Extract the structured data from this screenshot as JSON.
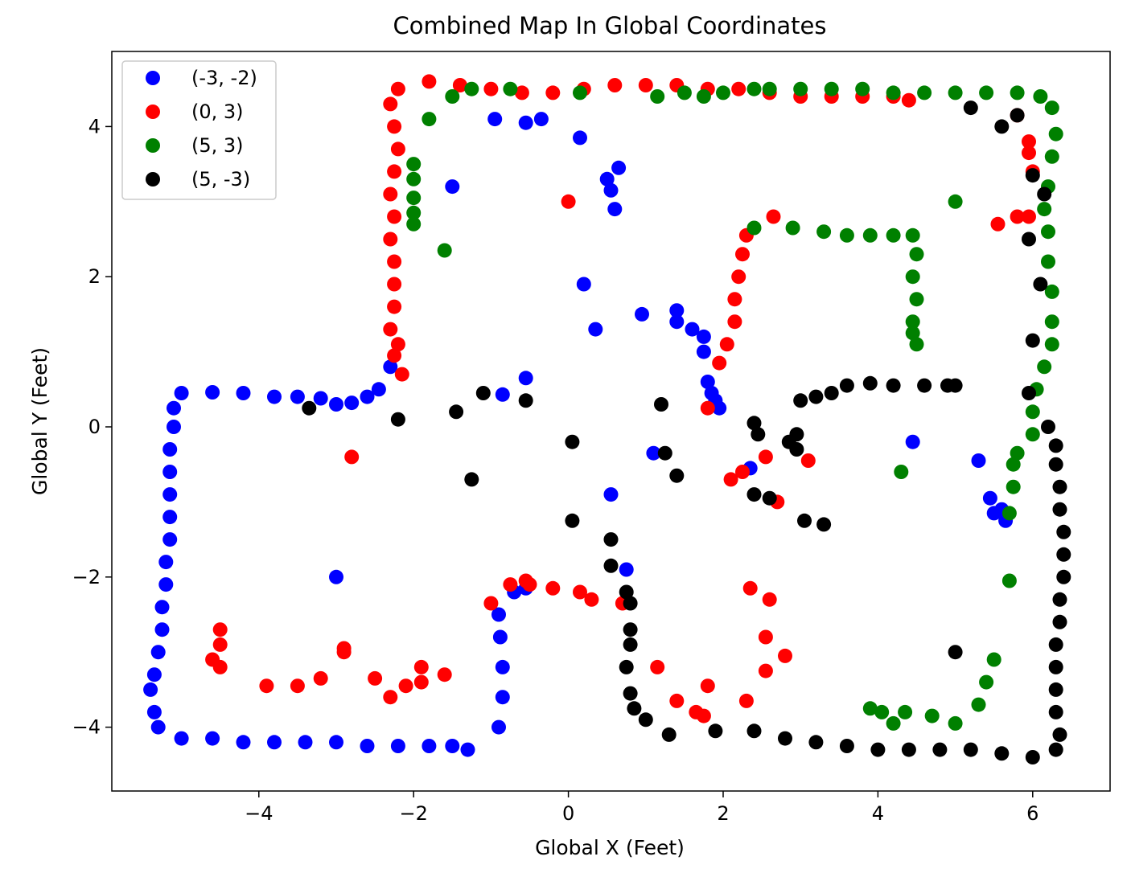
{
  "chart_data": {
    "type": "scatter",
    "title": "Combined Map In Global Coordinates",
    "xlabel": "Global X (Feet)",
    "ylabel": "Global Y (Feet)",
    "xlim": [
      -5.9,
      7.0
    ],
    "ylim": [
      -4.85,
      5.0
    ],
    "xticks": [
      -4,
      -2,
      0,
      2,
      4,
      6
    ],
    "yticks": [
      -4,
      -2,
      0,
      2,
      4
    ],
    "xtick_labels": [
      "−4",
      "−2",
      "0",
      "2",
      "4",
      "6"
    ],
    "ytick_labels": [
      "−4",
      "−2",
      "0",
      "2",
      "4"
    ],
    "grid": false,
    "legend_position": "top-left",
    "series": [
      {
        "name": "(-3, -2)",
        "color": "#0000ff",
        "points": [
          [
            -5.0,
            0.45
          ],
          [
            -4.6,
            0.46
          ],
          [
            -4.2,
            0.45
          ],
          [
            -3.8,
            0.4
          ],
          [
            -3.5,
            0.4
          ],
          [
            -3.2,
            0.38
          ],
          [
            -3.0,
            0.3
          ],
          [
            -2.8,
            0.32
          ],
          [
            -2.6,
            0.4
          ],
          [
            -2.45,
            0.5
          ],
          [
            -2.3,
            0.8
          ],
          [
            -5.1,
            0.25
          ],
          [
            -5.1,
            0.0
          ],
          [
            -5.15,
            -0.3
          ],
          [
            -5.15,
            -0.6
          ],
          [
            -5.15,
            -0.9
          ],
          [
            -5.15,
            -1.2
          ],
          [
            -5.15,
            -1.5
          ],
          [
            -5.2,
            -1.8
          ],
          [
            -5.2,
            -2.1
          ],
          [
            -5.25,
            -2.4
          ],
          [
            -5.25,
            -2.7
          ],
          [
            -5.3,
            -3.0
          ],
          [
            -5.35,
            -3.3
          ],
          [
            -5.4,
            -3.5
          ],
          [
            -5.35,
            -3.8
          ],
          [
            -5.3,
            -4.0
          ],
          [
            -5.0,
            -4.15
          ],
          [
            -4.6,
            -4.15
          ],
          [
            -4.2,
            -4.2
          ],
          [
            -3.8,
            -4.2
          ],
          [
            -3.4,
            -4.2
          ],
          [
            -3.0,
            -4.2
          ],
          [
            -2.6,
            -4.25
          ],
          [
            -2.2,
            -4.25
          ],
          [
            -1.8,
            -4.25
          ],
          [
            -1.5,
            -4.25
          ],
          [
            -1.3,
            -4.3
          ],
          [
            -0.9,
            -4.0
          ],
          [
            -0.85,
            -3.6
          ],
          [
            -0.85,
            -3.2
          ],
          [
            -0.88,
            -2.8
          ],
          [
            -0.9,
            -2.5
          ],
          [
            -0.7,
            -2.2
          ],
          [
            -0.55,
            -2.15
          ],
          [
            -3.0,
            -2.0
          ],
          [
            -0.95,
            4.1
          ],
          [
            -0.55,
            4.05
          ],
          [
            -0.35,
            4.1
          ],
          [
            0.15,
            3.85
          ],
          [
            -1.5,
            3.2
          ],
          [
            0.5,
            3.3
          ],
          [
            0.55,
            3.15
          ],
          [
            0.65,
            3.45
          ],
          [
            0.6,
            2.9
          ],
          [
            0.2,
            1.9
          ],
          [
            0.35,
            1.3
          ],
          [
            0.95,
            1.5
          ],
          [
            1.4,
            1.55
          ],
          [
            1.4,
            1.4
          ],
          [
            1.6,
            1.3
          ],
          [
            1.75,
            1.2
          ],
          [
            1.75,
            1.0
          ],
          [
            1.8,
            0.6
          ],
          [
            1.85,
            0.45
          ],
          [
            1.9,
            0.35
          ],
          [
            1.95,
            0.25
          ],
          [
            -0.85,
            0.43
          ],
          [
            -0.55,
            0.65
          ],
          [
            1.1,
            -0.35
          ],
          [
            0.55,
            -0.9
          ],
          [
            0.75,
            -1.9
          ],
          [
            2.35,
            -0.55
          ],
          [
            4.45,
            -0.2
          ],
          [
            5.3,
            -0.45
          ],
          [
            5.45,
            -0.95
          ],
          [
            5.5,
            -1.15
          ],
          [
            5.6,
            -1.1
          ],
          [
            5.65,
            -1.25
          ]
        ]
      },
      {
        "name": "(0, 3)",
        "color": "#ff0000",
        "points": [
          [
            -2.2,
            4.5
          ],
          [
            -1.8,
            4.6
          ],
          [
            -1.4,
            4.55
          ],
          [
            -1.0,
            4.5
          ],
          [
            -0.6,
            4.45
          ],
          [
            -0.2,
            4.45
          ],
          [
            0.2,
            4.5
          ],
          [
            0.6,
            4.55
          ],
          [
            1.0,
            4.55
          ],
          [
            1.4,
            4.55
          ],
          [
            1.8,
            4.5
          ],
          [
            2.2,
            4.5
          ],
          [
            2.6,
            4.45
          ],
          [
            3.0,
            4.4
          ],
          [
            3.4,
            4.4
          ],
          [
            3.8,
            4.4
          ],
          [
            4.2,
            4.4
          ],
          [
            4.4,
            4.35
          ],
          [
            -2.3,
            4.3
          ],
          [
            -2.25,
            4.0
          ],
          [
            -2.2,
            3.7
          ],
          [
            -2.25,
            3.4
          ],
          [
            -2.3,
            3.1
          ],
          [
            -2.25,
            2.8
          ],
          [
            -2.3,
            2.5
          ],
          [
            -2.25,
            2.2
          ],
          [
            -2.25,
            1.9
          ],
          [
            -2.25,
            1.6
          ],
          [
            -2.3,
            1.3
          ],
          [
            -2.2,
            1.1
          ],
          [
            -2.25,
            0.95
          ],
          [
            -2.15,
            0.7
          ],
          [
            1.95,
            0.85
          ],
          [
            2.05,
            1.1
          ],
          [
            2.15,
            1.4
          ],
          [
            2.15,
            1.7
          ],
          [
            2.2,
            2.0
          ],
          [
            2.25,
            2.3
          ],
          [
            2.3,
            2.55
          ],
          [
            2.65,
            2.8
          ],
          [
            1.8,
            0.25
          ],
          [
            0.0,
            3.0
          ],
          [
            -2.8,
            -0.4
          ],
          [
            2.1,
            -0.7
          ],
          [
            2.25,
            -0.6
          ],
          [
            2.55,
            -0.4
          ],
          [
            2.7,
            -1.0
          ],
          [
            3.1,
            -0.45
          ],
          [
            -4.5,
            -2.7
          ],
          [
            -4.5,
            -2.9
          ],
          [
            -4.6,
            -3.1
          ],
          [
            -4.5,
            -3.2
          ],
          [
            -3.9,
            -3.45
          ],
          [
            -3.5,
            -3.45
          ],
          [
            -3.2,
            -3.35
          ],
          [
            -2.9,
            -2.95
          ],
          [
            -2.9,
            -3.0
          ],
          [
            -2.5,
            -3.35
          ],
          [
            -2.3,
            -3.6
          ],
          [
            -2.1,
            -3.45
          ],
          [
            -1.9,
            -3.2
          ],
          [
            -1.9,
            -3.4
          ],
          [
            -1.6,
            -3.3
          ],
          [
            -1.0,
            -2.35
          ],
          [
            -0.75,
            -2.1
          ],
          [
            -0.55,
            -2.05
          ],
          [
            -0.5,
            -2.1
          ],
          [
            -0.2,
            -2.15
          ],
          [
            0.15,
            -2.2
          ],
          [
            0.3,
            -2.3
          ],
          [
            0.7,
            -2.35
          ],
          [
            1.15,
            -3.2
          ],
          [
            1.4,
            -3.65
          ],
          [
            1.65,
            -3.8
          ],
          [
            1.75,
            -3.85
          ],
          [
            1.8,
            -3.45
          ],
          [
            2.3,
            -3.65
          ],
          [
            2.35,
            -2.15
          ],
          [
            2.6,
            -2.3
          ],
          [
            2.55,
            -2.8
          ],
          [
            2.55,
            -3.25
          ],
          [
            2.8,
            -3.05
          ],
          [
            5.8,
            4.15
          ],
          [
            5.95,
            3.8
          ],
          [
            6.0,
            3.4
          ],
          [
            5.95,
            2.8
          ],
          [
            5.8,
            2.8
          ],
          [
            5.55,
            2.7
          ],
          [
            5.95,
            3.65
          ]
        ]
      },
      {
        "name": "(5, 3)",
        "color": "#008000",
        "points": [
          [
            -1.5,
            4.4
          ],
          [
            -1.25,
            4.5
          ],
          [
            -0.75,
            4.5
          ],
          [
            0.15,
            4.45
          ],
          [
            1.15,
            4.4
          ],
          [
            1.5,
            4.45
          ],
          [
            1.75,
            4.4
          ],
          [
            2.0,
            4.45
          ],
          [
            2.4,
            4.5
          ],
          [
            2.6,
            4.5
          ],
          [
            3.0,
            4.5
          ],
          [
            3.4,
            4.5
          ],
          [
            3.8,
            4.5
          ],
          [
            4.2,
            4.45
          ],
          [
            4.6,
            4.45
          ],
          [
            5.0,
            4.45
          ],
          [
            5.4,
            4.45
          ],
          [
            5.8,
            4.45
          ],
          [
            6.1,
            4.4
          ],
          [
            6.25,
            4.25
          ],
          [
            6.3,
            3.9
          ],
          [
            6.25,
            3.6
          ],
          [
            6.2,
            3.2
          ],
          [
            6.15,
            2.9
          ],
          [
            6.2,
            2.6
          ],
          [
            6.2,
            2.2
          ],
          [
            6.25,
            1.8
          ],
          [
            6.25,
            1.4
          ],
          [
            6.25,
            1.1
          ],
          [
            6.15,
            0.8
          ],
          [
            6.05,
            0.5
          ],
          [
            6.0,
            0.2
          ],
          [
            6.0,
            -0.1
          ],
          [
            -2.0,
            3.5
          ],
          [
            -2.0,
            3.3
          ],
          [
            -2.0,
            3.05
          ],
          [
            -2.0,
            2.85
          ],
          [
            -2.0,
            2.7
          ],
          [
            -1.8,
            4.1
          ],
          [
            -1.6,
            2.35
          ],
          [
            5.0,
            3.0
          ],
          [
            2.4,
            2.65
          ],
          [
            2.9,
            2.65
          ],
          [
            3.3,
            2.6
          ],
          [
            3.6,
            2.55
          ],
          [
            3.9,
            2.55
          ],
          [
            4.2,
            2.55
          ],
          [
            4.45,
            2.55
          ],
          [
            4.5,
            2.3
          ],
          [
            4.45,
            2.0
          ],
          [
            4.5,
            1.7
          ],
          [
            4.45,
            1.4
          ],
          [
            4.45,
            1.25
          ],
          [
            4.5,
            1.1
          ],
          [
            4.3,
            -0.6
          ],
          [
            5.8,
            -0.35
          ],
          [
            5.75,
            -0.5
          ],
          [
            5.75,
            -0.8
          ],
          [
            5.7,
            -1.15
          ],
          [
            5.7,
            -2.05
          ],
          [
            5.5,
            -3.1
          ],
          [
            5.4,
            -3.4
          ],
          [
            5.3,
            -3.7
          ],
          [
            5.0,
            -3.95
          ],
          [
            4.7,
            -3.85
          ],
          [
            4.35,
            -3.8
          ],
          [
            4.2,
            -3.95
          ],
          [
            4.05,
            -3.8
          ],
          [
            3.9,
            -3.75
          ]
        ]
      },
      {
        "name": "(5, -3)",
        "color": "#000000",
        "points": [
          [
            3.0,
            0.35
          ],
          [
            3.2,
            0.4
          ],
          [
            3.4,
            0.45
          ],
          [
            3.6,
            0.55
          ],
          [
            3.9,
            0.58
          ],
          [
            4.2,
            0.55
          ],
          [
            4.6,
            0.55
          ],
          [
            4.9,
            0.55
          ],
          [
            5.0,
            0.55
          ],
          [
            2.4,
            0.05
          ],
          [
            2.45,
            -0.1
          ],
          [
            2.85,
            -0.2
          ],
          [
            2.95,
            -0.3
          ],
          [
            2.95,
            -0.1
          ],
          [
            2.4,
            -0.9
          ],
          [
            2.6,
            -0.95
          ],
          [
            3.05,
            -1.25
          ],
          [
            3.3,
            -1.3
          ],
          [
            5.8,
            4.15
          ],
          [
            6.0,
            3.35
          ],
          [
            6.15,
            3.1
          ],
          [
            5.95,
            2.5
          ],
          [
            6.1,
            1.9
          ],
          [
            6.0,
            1.15
          ],
          [
            5.95,
            0.45
          ],
          [
            6.2,
            0.0
          ],
          [
            6.3,
            -0.25
          ],
          [
            6.3,
            -0.5
          ],
          [
            6.35,
            -0.8
          ],
          [
            6.35,
            -1.1
          ],
          [
            6.4,
            -1.4
          ],
          [
            6.4,
            -1.7
          ],
          [
            6.4,
            -2.0
          ],
          [
            6.35,
            -2.3
          ],
          [
            6.35,
            -2.6
          ],
          [
            6.3,
            -2.9
          ],
          [
            6.3,
            -3.2
          ],
          [
            6.3,
            -3.5
          ],
          [
            6.3,
            -3.8
          ],
          [
            6.35,
            -4.1
          ],
          [
            6.3,
            -4.3
          ],
          [
            6.0,
            -4.4
          ],
          [
            5.6,
            -4.35
          ],
          [
            5.2,
            -4.3
          ],
          [
            4.8,
            -4.3
          ],
          [
            4.4,
            -4.3
          ],
          [
            4.0,
            -4.3
          ],
          [
            3.6,
            -4.25
          ],
          [
            3.2,
            -4.2
          ],
          [
            2.8,
            -4.15
          ],
          [
            2.4,
            -4.05
          ],
          [
            1.9,
            -4.05
          ],
          [
            1.3,
            -4.1
          ],
          [
            1.0,
            -3.9
          ],
          [
            0.85,
            -3.75
          ],
          [
            0.8,
            -3.55
          ],
          [
            0.75,
            -3.2
          ],
          [
            0.8,
            -2.9
          ],
          [
            0.8,
            -2.7
          ],
          [
            0.8,
            -2.35
          ],
          [
            0.75,
            -2.2
          ],
          [
            0.55,
            -1.85
          ],
          [
            0.55,
            -1.5
          ],
          [
            0.05,
            -1.25
          ],
          [
            0.05,
            -0.2
          ],
          [
            -3.35,
            0.25
          ],
          [
            -2.2,
            0.1
          ],
          [
            -1.45,
            0.2
          ],
          [
            -1.1,
            0.45
          ],
          [
            -0.55,
            0.35
          ],
          [
            -1.25,
            -0.7
          ],
          [
            1.2,
            0.3
          ],
          [
            1.25,
            -0.35
          ],
          [
            1.4,
            -0.65
          ],
          [
            5.0,
            -3.0
          ],
          [
            5.2,
            4.25
          ],
          [
            5.6,
            4.0
          ]
        ]
      }
    ]
  }
}
